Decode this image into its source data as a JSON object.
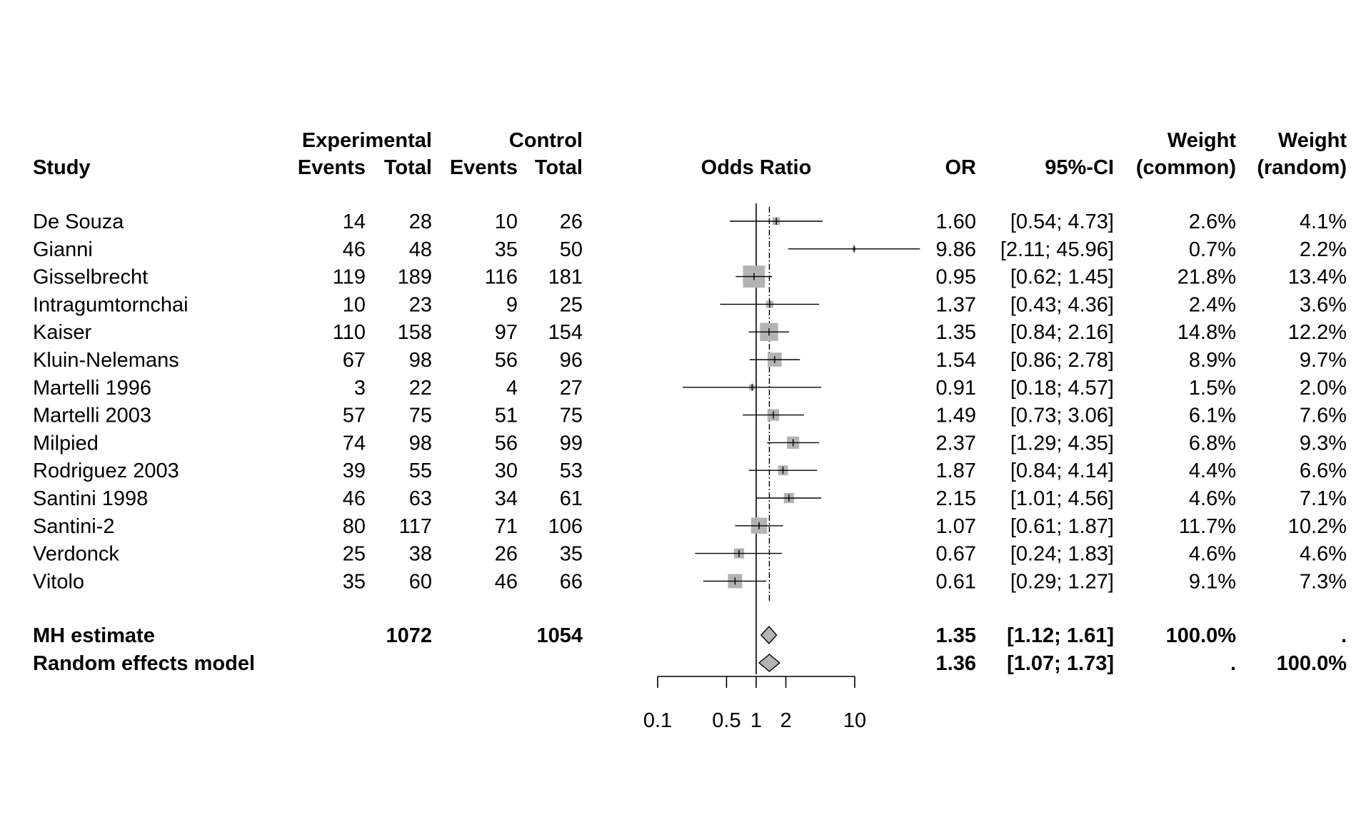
{
  "header": {
    "study": "Study",
    "experimental": "Experimental",
    "control": "Control",
    "events": "Events",
    "total": "Total",
    "plot_label": "Odds Ratio",
    "or": "OR",
    "ci": "95%-CI",
    "weight": "Weight",
    "weight_common": "(common)",
    "weight_random": "(random)"
  },
  "chart_data": {
    "type": "forest",
    "scale": "log",
    "x_ticks": [
      0.1,
      0.5,
      1,
      2,
      10
    ],
    "x_tick_labels": [
      "0.1",
      "0.5",
      "1",
      "2",
      "10"
    ],
    "reference_line": 1,
    "pooled_line": 1.36,
    "colors": {
      "square": "#b3b3b3",
      "diamond": "#b3b3b3",
      "line": "#000000"
    },
    "studies": [
      {
        "name": "De Souza",
        "exp_events": "14",
        "exp_total": "28",
        "ctrl_events": "10",
        "ctrl_total": "26",
        "or": 1.6,
        "lower": 0.54,
        "upper": 4.73,
        "or_text": "1.60",
        "ci_text": "[0.54;  4.73]",
        "w_common_text": "2.6%",
        "w_random_text": "4.1%",
        "w_common": 2.6
      },
      {
        "name": "Gianni",
        "exp_events": "46",
        "exp_total": "48",
        "ctrl_events": "35",
        "ctrl_total": "50",
        "or": 9.86,
        "lower": 2.11,
        "upper": 45.96,
        "or_text": "9.86",
        "ci_text": "[2.11; 45.96]",
        "w_common_text": "0.7%",
        "w_random_text": "2.2%",
        "w_common": 0.7
      },
      {
        "name": "Gisselbrecht",
        "exp_events": "119",
        "exp_total": "189",
        "ctrl_events": "116",
        "ctrl_total": "181",
        "or": 0.95,
        "lower": 0.62,
        "upper": 1.45,
        "or_text": "0.95",
        "ci_text": "[0.62;  1.45]",
        "w_common_text": "21.8%",
        "w_random_text": "13.4%",
        "w_common": 21.8
      },
      {
        "name": "Intragumtornchai",
        "exp_events": "10",
        "exp_total": "23",
        "ctrl_events": "9",
        "ctrl_total": "25",
        "or": 1.37,
        "lower": 0.43,
        "upper": 4.36,
        "or_text": "1.37",
        "ci_text": "[0.43;  4.36]",
        "w_common_text": "2.4%",
        "w_random_text": "3.6%",
        "w_common": 2.4
      },
      {
        "name": "Kaiser",
        "exp_events": "110",
        "exp_total": "158",
        "ctrl_events": "97",
        "ctrl_total": "154",
        "or": 1.35,
        "lower": 0.84,
        "upper": 2.16,
        "or_text": "1.35",
        "ci_text": "[0.84;  2.16]",
        "w_common_text": "14.8%",
        "w_random_text": "12.2%",
        "w_common": 14.8
      },
      {
        "name": "Kluin-Nelemans",
        "exp_events": "67",
        "exp_total": "98",
        "ctrl_events": "56",
        "ctrl_total": "96",
        "or": 1.54,
        "lower": 0.86,
        "upper": 2.78,
        "or_text": "1.54",
        "ci_text": "[0.86;  2.78]",
        "w_common_text": "8.9%",
        "w_random_text": "9.7%",
        "w_common": 8.9
      },
      {
        "name": "Martelli 1996",
        "exp_events": "3",
        "exp_total": "22",
        "ctrl_events": "4",
        "ctrl_total": "27",
        "or": 0.91,
        "lower": 0.18,
        "upper": 4.57,
        "or_text": "0.91",
        "ci_text": "[0.18;  4.57]",
        "w_common_text": "1.5%",
        "w_random_text": "2.0%",
        "w_common": 1.5
      },
      {
        "name": "Martelli 2003",
        "exp_events": "57",
        "exp_total": "75",
        "ctrl_events": "51",
        "ctrl_total": "75",
        "or": 1.49,
        "lower": 0.73,
        "upper": 3.06,
        "or_text": "1.49",
        "ci_text": "[0.73;  3.06]",
        "w_common_text": "6.1%",
        "w_random_text": "7.6%",
        "w_common": 6.1
      },
      {
        "name": "Milpied",
        "exp_events": "74",
        "exp_total": "98",
        "ctrl_events": "56",
        "ctrl_total": "99",
        "or": 2.37,
        "lower": 1.29,
        "upper": 4.35,
        "or_text": "2.37",
        "ci_text": "[1.29;  4.35]",
        "w_common_text": "6.8%",
        "w_random_text": "9.3%",
        "w_common": 6.8
      },
      {
        "name": "Rodriguez 2003",
        "exp_events": "39",
        "exp_total": "55",
        "ctrl_events": "30",
        "ctrl_total": "53",
        "or": 1.87,
        "lower": 0.84,
        "upper": 4.14,
        "or_text": "1.87",
        "ci_text": "[0.84;  4.14]",
        "w_common_text": "4.4%",
        "w_random_text": "6.6%",
        "w_common": 4.4
      },
      {
        "name": "Santini 1998",
        "exp_events": "46",
        "exp_total": "63",
        "ctrl_events": "34",
        "ctrl_total": "61",
        "or": 2.15,
        "lower": 1.01,
        "upper": 4.56,
        "or_text": "2.15",
        "ci_text": "[1.01;  4.56]",
        "w_common_text": "4.6%",
        "w_random_text": "7.1%",
        "w_common": 4.6
      },
      {
        "name": "Santini-2",
        "exp_events": "80",
        "exp_total": "117",
        "ctrl_events": "71",
        "ctrl_total": "106",
        "or": 1.07,
        "lower": 0.61,
        "upper": 1.87,
        "or_text": "1.07",
        "ci_text": "[0.61;  1.87]",
        "w_common_text": "11.7%",
        "w_random_text": "10.2%",
        "w_common": 11.7
      },
      {
        "name": "Verdonck",
        "exp_events": "25",
        "exp_total": "38",
        "ctrl_events": "26",
        "ctrl_total": "35",
        "or": 0.67,
        "lower": 0.24,
        "upper": 1.83,
        "or_text": "0.67",
        "ci_text": "[0.24;  1.83]",
        "w_common_text": "4.6%",
        "w_random_text": "4.6%",
        "w_common": 4.6
      },
      {
        "name": "Vitolo",
        "exp_events": "35",
        "exp_total": "60",
        "ctrl_events": "46",
        "ctrl_total": "66",
        "or": 0.61,
        "lower": 0.29,
        "upper": 1.27,
        "or_text": "0.61",
        "ci_text": "[0.29;  1.27]",
        "w_common_text": "9.1%",
        "w_random_text": "7.3%",
        "w_common": 9.1
      }
    ],
    "pooled": [
      {
        "name": "MH estimate",
        "exp_total": "1072",
        "ctrl_total": "1054",
        "or": 1.35,
        "lower": 1.12,
        "upper": 1.61,
        "or_text": "1.35",
        "ci_text": "[1.12;  1.61]",
        "w_common_text": "100.0%",
        "w_random_text": "."
      },
      {
        "name": "Random effects model",
        "exp_total": "",
        "ctrl_total": "",
        "or": 1.36,
        "lower": 1.07,
        "upper": 1.73,
        "or_text": "1.36",
        "ci_text": "[1.07;  1.73]",
        "w_common_text": ".",
        "w_random_text": "100.0%"
      }
    ]
  }
}
